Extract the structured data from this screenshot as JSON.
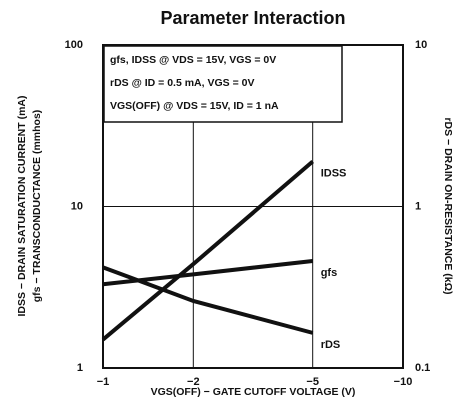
{
  "chart_data": {
    "type": "line",
    "title": "Parameter Interaction",
    "annotations": [
      "gfs, IDSS @ VDS = 15V, VGS = 0V",
      "rDS @ ID = 0.5 mA, VGS = 0V",
      "VGS(OFF) @ VDS = 15V, ID = 1 nA"
    ],
    "x_label": "VGS(OFF) − GATE CUTOFF VOLTAGE (V)",
    "y_label": [
      "IDSS − DRAIN SATURATION CURRENT (mA)",
      "gfs − TRANSCONDUCTANCE (mmhos)"
    ],
    "y2_label": "rDS − DRAIN ON-RESISTANCE (kΩ)",
    "x": [
      -1,
      -2,
      -5
    ],
    "series": [
      {
        "name": "IDSS",
        "color": "#111111",
        "values": [
          1.5,
          4.4,
          19
        ]
      },
      {
        "name": "gfs",
        "color": "#111111",
        "values": [
          3.3,
          3.8,
          4.6
        ]
      },
      {
        "name": "rDS",
        "color": "#111111",
        "values": [
          0.42,
          0.26,
          0.165
        ],
        "axis": "y2"
      }
    ],
    "xscale": "log",
    "yscale": "log",
    "y2scale": "log",
    "xlim": [
      -1,
      -10
    ],
    "xticks": [
      {
        "value": -1,
        "label": "−1"
      },
      {
        "value": -2,
        "label": "−2"
      },
      {
        "value": -5,
        "label": "−5"
      },
      {
        "value": -10,
        "label": "−10"
      }
    ],
    "ylim": [
      1,
      100
    ],
    "yticks": [
      1,
      10,
      100
    ],
    "y2lim": [
      0.1,
      10
    ],
    "y2ticks": [
      0.1,
      1,
      10
    ],
    "grid": true
  }
}
